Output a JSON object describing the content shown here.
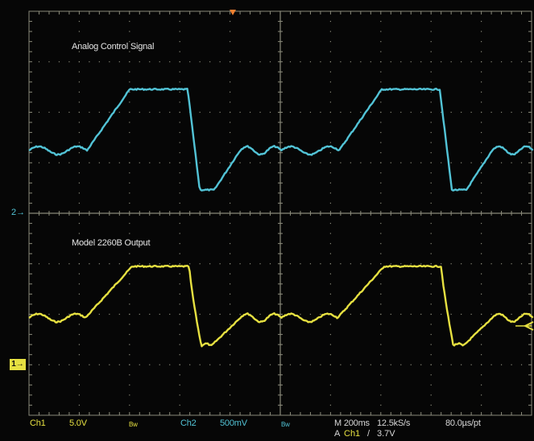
{
  "labels": {
    "ch2_trace_label": "Analog Control Signal",
    "ch1_trace_label": "Model 2260B Output"
  },
  "markers": {
    "ch1": "1",
    "ch2": "2"
  },
  "status": {
    "ch1_name": "Ch1",
    "ch1_scale": "5.0V",
    "ch1_bw": "Bw",
    "ch2_name": "Ch2",
    "ch2_scale": "500mV",
    "ch2_bw": "Bw",
    "timebase": "M 200ms",
    "sample_rate": "12.5kS/s",
    "record": "80.0µs/pt",
    "trigger_prefix": "A",
    "trigger_source": "Ch1",
    "trigger_slope": "/",
    "trigger_level": "3.7V"
  },
  "colors": {
    "ch1": "#e6e041",
    "ch2": "#52c3d6",
    "grid": "#8a8a7a",
    "background": "#060606",
    "trigger_marker": "#f08030"
  }
}
